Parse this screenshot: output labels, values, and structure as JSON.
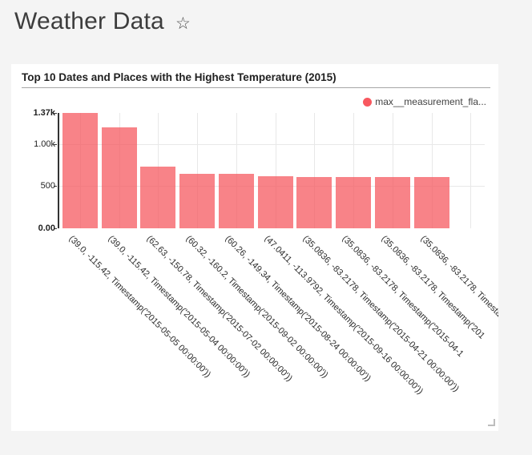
{
  "page": {
    "title": "Weather Data",
    "favorite_icon": {
      "name": "star-outline-icon",
      "glyph": "☆"
    }
  },
  "card": {
    "title": "Top 10 Dates and Places with the Highest Temperature (2015)",
    "legend": {
      "label": "max__measurement_fla...",
      "color": "#f8585f"
    }
  },
  "chart_data": {
    "type": "bar",
    "title": "Top 10 Dates and Places with the Highest Temperature (2015)",
    "legend_entries": [
      "max__measurement_fla..."
    ],
    "legend_position": "top-right",
    "grid": true,
    "x_label_rotation_deg": 45,
    "bar_color": "rgba(246,88,94,0.74)",
    "ylim": [
      0,
      1370
    ],
    "y_ticks": [
      {
        "label": "1.37k",
        "value": 1370,
        "emphasis": true,
        "gridline": false
      },
      {
        "label": "1.00k",
        "value": 1000,
        "emphasis": false,
        "gridline": true
      },
      {
        "label": "500",
        "value": 500,
        "emphasis": false,
        "gridline": true
      },
      {
        "label": "0.00",
        "value": 0,
        "emphasis": true,
        "gridline": false
      }
    ],
    "categories": [
      "(39.0, -115.42, Timestamp('2015-05-05 00:00:00'))",
      "(39.0, -115.42, Timestamp('2015-05-04 00:00:00'))",
      "(62.63, -150.78, Timestamp('2015-07-02 00:00:00'))",
      "(60.32, -160.2, Timestamp('2015-09-02 00:00:00'))",
      "(60.26, -149.34, Timestamp('2015-08-24 00:00:00'))",
      "(47.0411, -113.9792, Timestamp('2015-09-16 00:00:00'))",
      "(35.0836, -83.2178, Timestamp('2015-04-21 00:00:00'))",
      "(35.0836, -83.2178, Timestamp('2015-04-1",
      "(35.0836, -83.2178, Timestamp('201",
      "(35.0836, -83.2178, Timesta"
    ],
    "values": [
      1370,
      1200,
      735,
      650,
      645,
      615,
      613,
      612,
      611,
      606
    ]
  }
}
